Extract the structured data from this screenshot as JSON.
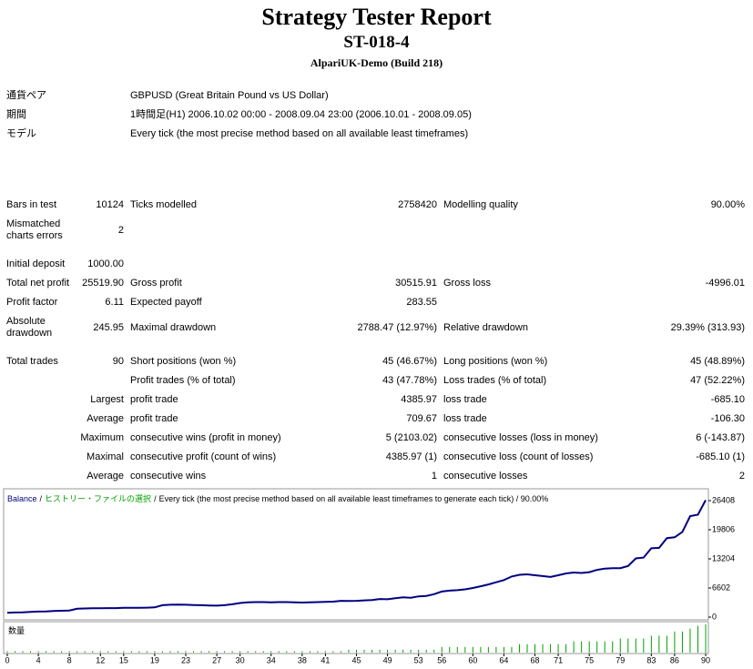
{
  "header": {
    "title": "Strategy Tester Report",
    "subtitle": "ST-018-4",
    "server": "AlpariUK-Demo (Build 218)"
  },
  "info": [
    {
      "label": "通貨ペア",
      "value": "GBPUSD (Great Britain Pound vs US Dollar)"
    },
    {
      "label": "期間",
      "value": "1時間足(H1) 2006.10.02 00:00 - 2008.09.04 23:00 (2006.10.01 - 2008.09.05)"
    },
    {
      "label": "モデル",
      "value": "Every tick (the most precise method based on all available least timeframes)"
    }
  ],
  "stats": {
    "rows": [
      [
        "Bars in test",
        "10124",
        "Ticks modelled",
        "2758420",
        "Modelling quality",
        "90.00%"
      ],
      [
        "Mismatched charts errors",
        "2",
        null,
        null,
        null,
        null
      ],
      [
        "Initial deposit",
        "1000.00",
        null,
        null,
        null,
        null
      ],
      [
        "Total net profit",
        "25519.90",
        "Gross profit",
        "30515.91",
        "Gross loss",
        "-4996.01"
      ],
      [
        "Profit factor",
        "6.11",
        "Expected payoff",
        "283.55",
        null,
        null
      ],
      [
        "Absolute drawdown",
        "245.95",
        "Maximal drawdown",
        "2788.47 (12.97%)",
        "Relative drawdown",
        "29.39% (313.93)"
      ],
      [
        "Total trades",
        "90",
        "Short positions (won %)",
        "45 (46.67%)",
        "Long positions (won %)",
        "45 (48.89%)"
      ],
      [
        null,
        null,
        "Profit trades (% of total)",
        "43 (47.78%)",
        "Loss trades (% of total)",
        "47 (52.22%)"
      ],
      [
        null,
        "Largest",
        "profit trade",
        "4385.97",
        "loss trade",
        "-685.10"
      ],
      [
        null,
        "Average",
        "profit trade",
        "709.67",
        "loss trade",
        "-106.30"
      ],
      [
        null,
        "Maximum",
        "consecutive wins (profit in money)",
        "5 (2103.02)",
        "consecutive losses (loss in money)",
        "6 (-143.87)"
      ],
      [
        null,
        "Maximal",
        "consecutive profit (count of wins)",
        "4385.97 (1)",
        "consecutive loss (count of losses)",
        "-685.10 (1)"
      ],
      [
        null,
        "Average",
        "consecutive wins",
        "1",
        "consecutive losses",
        "2"
      ]
    ]
  },
  "chart_data": {
    "type": "line",
    "separator": "/",
    "history_label": "ヒストリー・ファイルの選択",
    "caption": "Every tick (the most precise method based on all available least timeframes to generate each tick) / 90.00%",
    "x": [
      0,
      1,
      2,
      3,
      4,
      5,
      6,
      7,
      8,
      9,
      10,
      11,
      12,
      13,
      14,
      15,
      16,
      17,
      18,
      19,
      20,
      21,
      22,
      23,
      24,
      25,
      26,
      27,
      28,
      29,
      30,
      31,
      32,
      33,
      34,
      35,
      36,
      37,
      38,
      39,
      40,
      41,
      42,
      43,
      44,
      45,
      46,
      47,
      48,
      49,
      50,
      51,
      52,
      53,
      54,
      55,
      56,
      57,
      58,
      59,
      60,
      61,
      62,
      63,
      64,
      65,
      66,
      67,
      68,
      69,
      70,
      71,
      72,
      73,
      74,
      75,
      76,
      77,
      78,
      79,
      80,
      81,
      82,
      83,
      84,
      85,
      86,
      87,
      88,
      89,
      90
    ],
    "xlim": [
      0,
      90
    ],
    "xticks": [
      0,
      4,
      8,
      12,
      15,
      19,
      23,
      27,
      30,
      34,
      38,
      41,
      45,
      49,
      53,
      56,
      60,
      64,
      68,
      71,
      75,
      79,
      83,
      86,
      90
    ],
    "ylim": [
      0,
      26408
    ],
    "yticks": [
      0,
      6602,
      13204,
      19806,
      26408
    ],
    "series": [
      {
        "name": "Balance",
        "color": "#000080",
        "values": [
          1000,
          1050,
          1100,
          1200,
          1250,
          1300,
          1400,
          1450,
          1500,
          1900,
          1950,
          2000,
          2000,
          2050,
          2050,
          2100,
          2100,
          2100,
          2150,
          2200,
          2700,
          2800,
          2850,
          2800,
          2750,
          2700,
          2650,
          2600,
          2700,
          2900,
          3200,
          3350,
          3400,
          3400,
          3350,
          3400,
          3400,
          3350,
          3300,
          3350,
          3400,
          3450,
          3500,
          3700,
          3650,
          3700,
          3800,
          3850,
          4100,
          4050,
          4300,
          4500,
          4400,
          4700,
          4800,
          5200,
          5800,
          6000,
          6100,
          6300,
          6600,
          7000,
          7400,
          7900,
          8400,
          9200,
          9600,
          9700,
          9500,
          9300,
          9100,
          9500,
          9900,
          10100,
          10000,
          10200,
          10700,
          11000,
          11100,
          11100,
          11600,
          13300,
          13500,
          15600,
          15700,
          17900,
          18100,
          19300,
          22900,
          23200,
          26520
        ]
      },
      {
        "name": "数量",
        "color": "#00a000",
        "type": "bar",
        "values": [
          0.05,
          0.05,
          0.05,
          0.05,
          0.05,
          0.05,
          0.05,
          0.05,
          0.05,
          0.05,
          0.05,
          0.05,
          0.05,
          0.05,
          0.05,
          0.05,
          0.05,
          0.05,
          0.05,
          0.05,
          0.05,
          0.05,
          0.05,
          0.05,
          0.05,
          0.05,
          0.05,
          0.05,
          0.05,
          0.05,
          0.05,
          0.05,
          0.05,
          0.05,
          0.05,
          0.05,
          0.05,
          0.05,
          0.05,
          0.05,
          0.05,
          0.05,
          0.05,
          0.05,
          0.1,
          0.1,
          0.1,
          0.1,
          0.1,
          0.1,
          0.1,
          0.1,
          0.1,
          0.1,
          0.1,
          0.1,
          0.2,
          0.2,
          0.2,
          0.2,
          0.2,
          0.2,
          0.2,
          0.2,
          0.2,
          0.2,
          0.3,
          0.3,
          0.3,
          0.3,
          0.3,
          0.3,
          0.3,
          0.4,
          0.4,
          0.4,
          0.4,
          0.4,
          0.4,
          0.5,
          0.5,
          0.5,
          0.5,
          0.6,
          0.6,
          0.6,
          0.75,
          0.75,
          0.85,
          0.95,
          1.0
        ]
      }
    ]
  }
}
